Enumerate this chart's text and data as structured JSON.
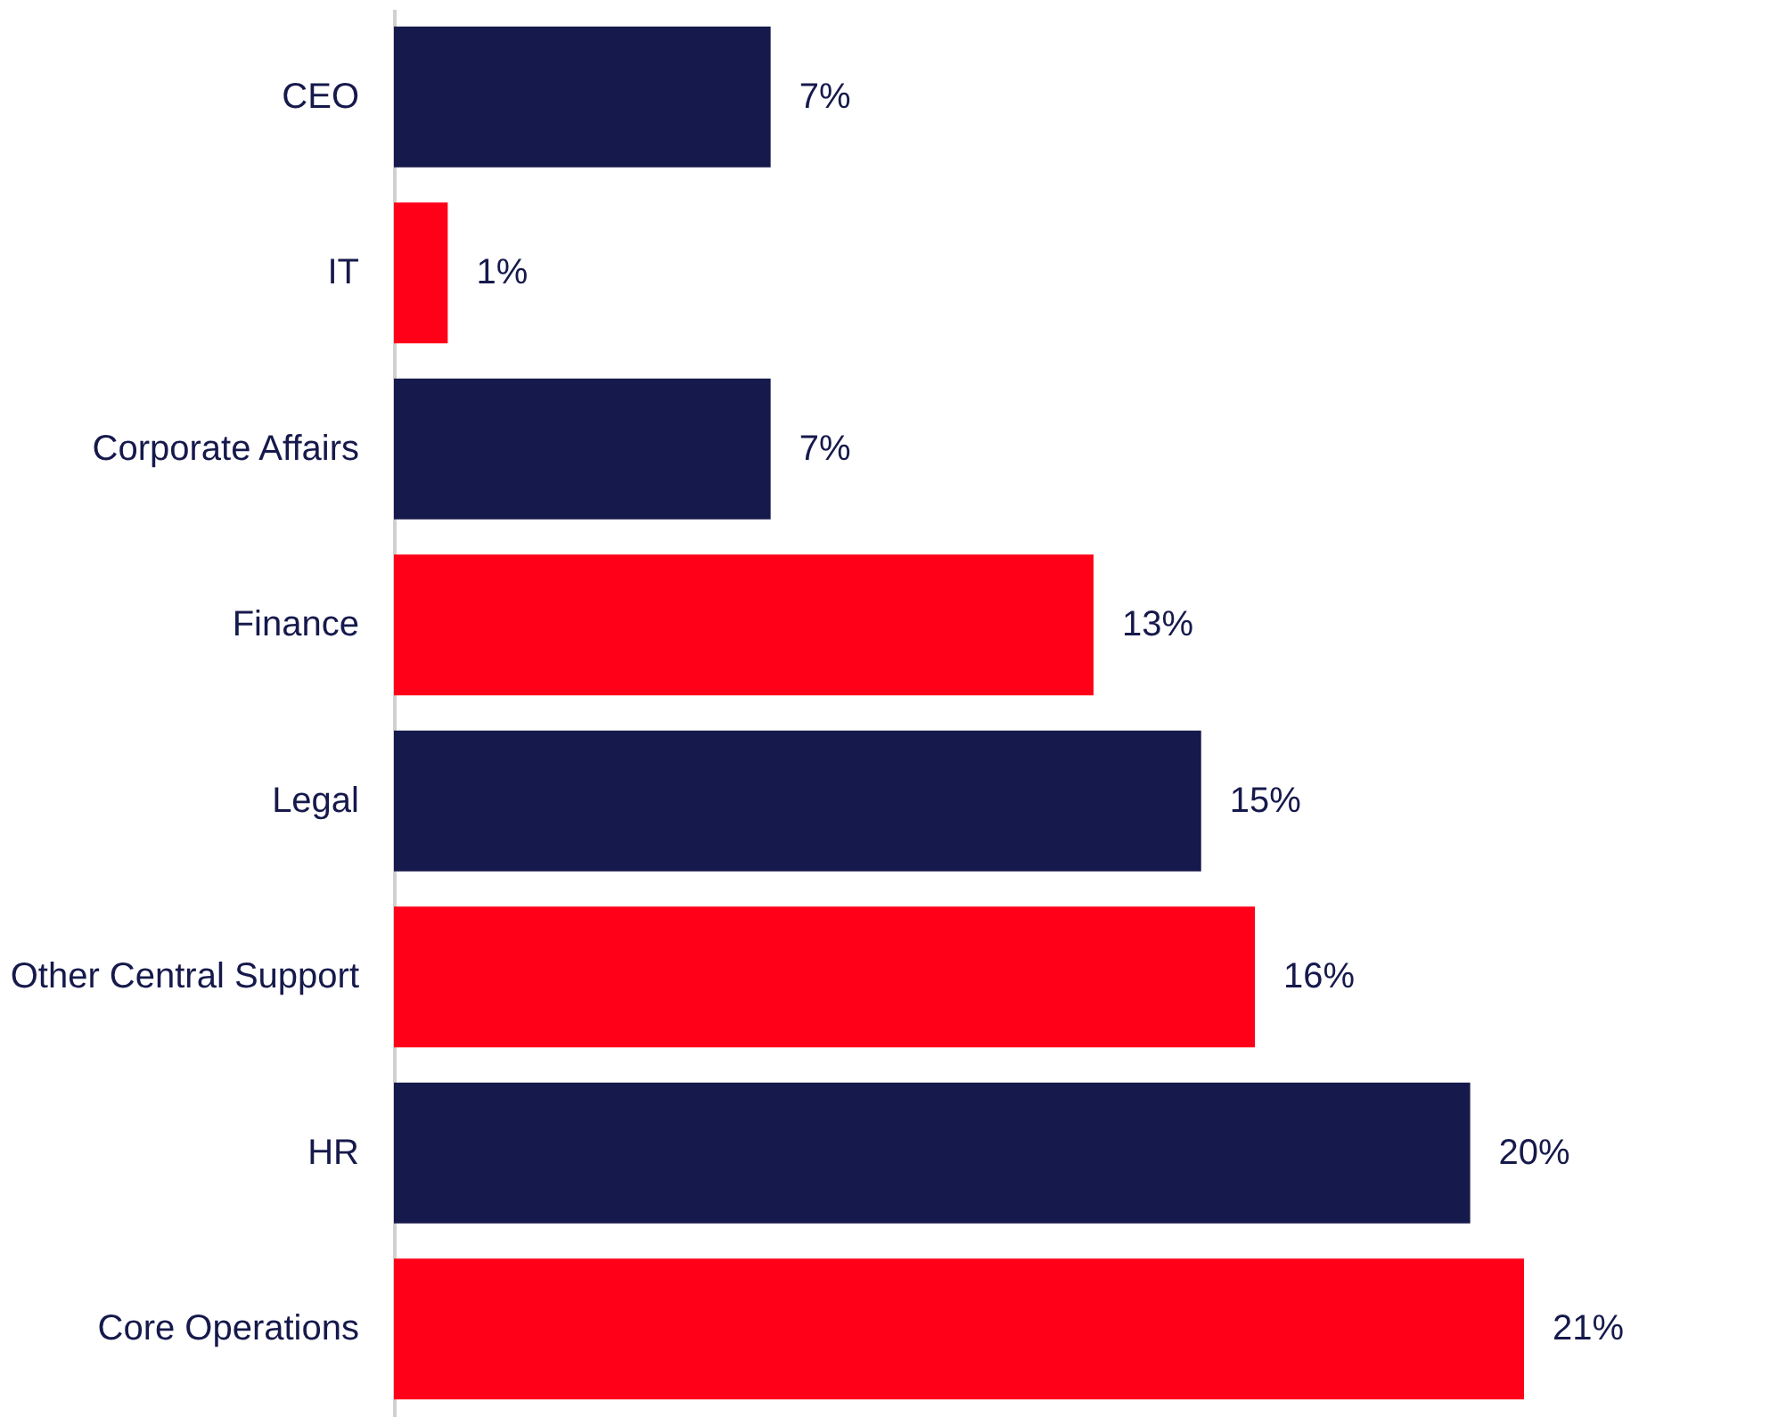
{
  "chart_data": {
    "type": "bar",
    "orientation": "horizontal",
    "categories": [
      "CEO",
      "IT",
      "Corporate Affairs",
      "Finance",
      "Legal",
      "Other Central Support",
      "HR",
      "Core Operations"
    ],
    "values": [
      7,
      1,
      7,
      13,
      15,
      16,
      20,
      21
    ],
    "colors": [
      "#16194b",
      "#ff0018",
      "#16194b",
      "#ff0018",
      "#16194b",
      "#ff0018",
      "#16194b",
      "#ff0018"
    ],
    "value_labels": [
      "7%",
      "1%",
      "7%",
      "13%",
      "15%",
      "16%",
      "20%",
      "21%"
    ],
    "grid": false
  }
}
